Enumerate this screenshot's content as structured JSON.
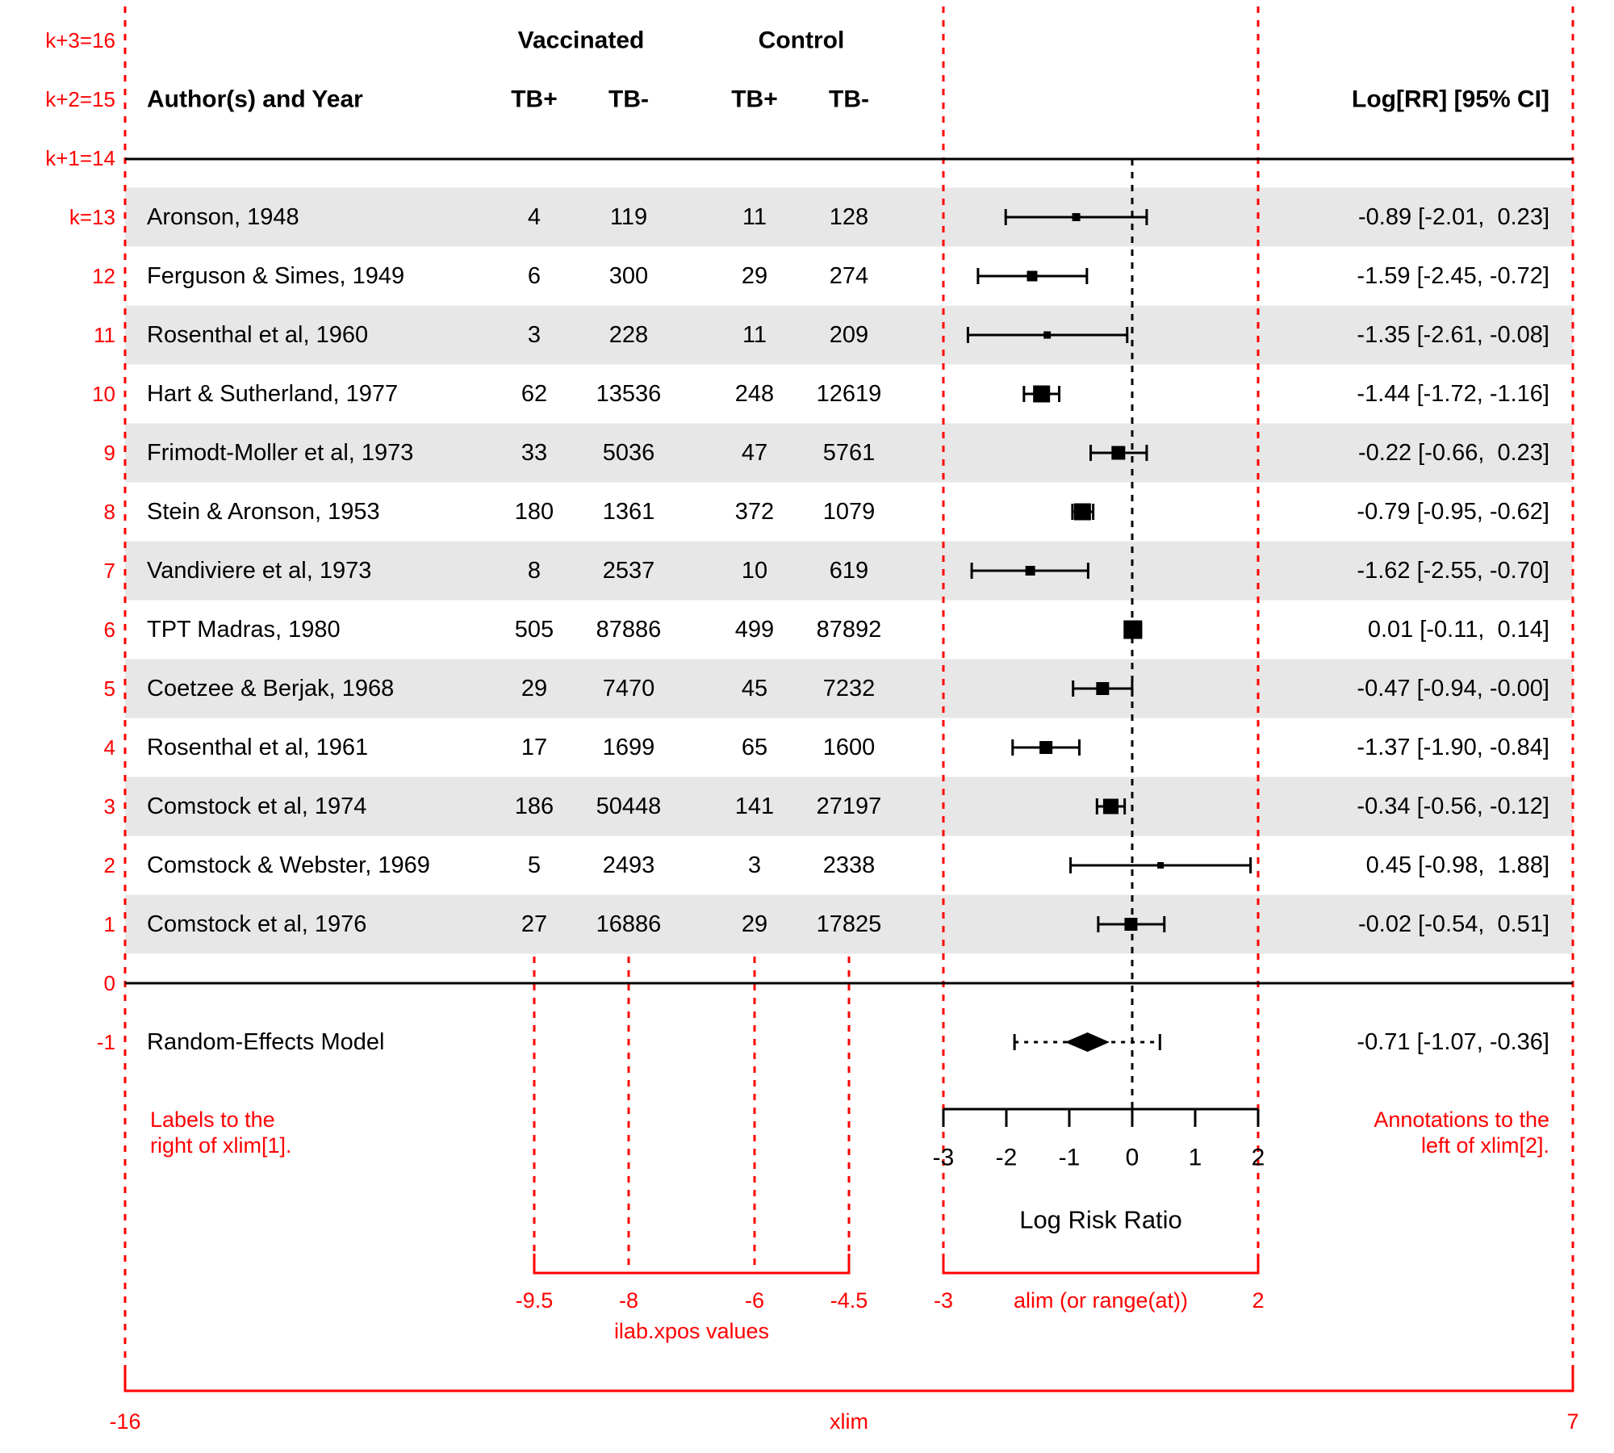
{
  "colors": {
    "red": "#FF0000",
    "band": "#E7E7E7",
    "ink": "#000000",
    "background": "#FFFFFF"
  },
  "header": {
    "author": "Author(s) and Year",
    "group_vaccinated": "Vaccinated",
    "group_control": "Control",
    "subcols": [
      "TB+",
      "TB-",
      "TB+",
      "TB-"
    ],
    "annotation": "Log[RR] [95% CI]"
  },
  "row_index_labels": [
    "k+3=16",
    "k+2=15",
    "k+1=14",
    "k=13",
    "12",
    "11",
    "10",
    "9",
    "8",
    "7",
    "6",
    "5",
    "4",
    "3",
    "2",
    "1",
    "0",
    "-1"
  ],
  "chart_data": {
    "type": "forest",
    "xlabel": "Log Risk Ratio",
    "axis_ticks": [
      -3,
      -2,
      -1,
      0,
      1,
      2
    ],
    "alim": [
      -3,
      2
    ],
    "xlim": [
      -16,
      7
    ],
    "ilab_xpos": [
      -9.5,
      -8,
      -6,
      -4.5
    ],
    "studies": [
      {
        "author": "Aronson, 1948",
        "tb_pos_v": 4,
        "tb_neg_v": 119,
        "tb_pos_c": 11,
        "tb_neg_c": 128,
        "estimate": -0.89,
        "ci_lb": -2.01,
        "ci_ub": 0.23,
        "annotation": "-0.89 [-2.01,  0.23]",
        "psize": 10,
        "shaded": true
      },
      {
        "author": "Ferguson & Simes, 1949",
        "tb_pos_v": 6,
        "tb_neg_v": 300,
        "tb_pos_c": 29,
        "tb_neg_c": 274,
        "estimate": -1.59,
        "ci_lb": -2.45,
        "ci_ub": -0.72,
        "annotation": "-1.59 [-2.45, -0.72]",
        "psize": 13,
        "shaded": false
      },
      {
        "author": "Rosenthal et al, 1960",
        "tb_pos_v": 3,
        "tb_neg_v": 228,
        "tb_pos_c": 11,
        "tb_neg_c": 209,
        "estimate": -1.35,
        "ci_lb": -2.61,
        "ci_ub": -0.08,
        "annotation": "-1.35 [-2.61, -0.08]",
        "psize": 9,
        "shaded": true
      },
      {
        "author": "Hart & Sutherland, 1977",
        "tb_pos_v": 62,
        "tb_neg_v": 13536,
        "tb_pos_c": 248,
        "tb_neg_c": 12619,
        "estimate": -1.44,
        "ci_lb": -1.72,
        "ci_ub": -1.16,
        "annotation": "-1.44 [-1.72, -1.16]",
        "psize": 21,
        "shaded": false
      },
      {
        "author": "Frimodt-Moller et al, 1973",
        "tb_pos_v": 33,
        "tb_neg_v": 5036,
        "tb_pos_c": 47,
        "tb_neg_c": 5761,
        "estimate": -0.22,
        "ci_lb": -0.66,
        "ci_ub": 0.23,
        "annotation": "-0.22 [-0.66,  0.23]",
        "psize": 17,
        "shaded": true
      },
      {
        "author": "Stein & Aronson, 1953",
        "tb_pos_v": 180,
        "tb_neg_v": 1361,
        "tb_pos_c": 372,
        "tb_neg_c": 1079,
        "estimate": -0.79,
        "ci_lb": -0.95,
        "ci_ub": -0.62,
        "annotation": "-0.79 [-0.95, -0.62]",
        "psize": 21,
        "shaded": false
      },
      {
        "author": "Vandiviere et al, 1973",
        "tb_pos_v": 8,
        "tb_neg_v": 2537,
        "tb_pos_c": 10,
        "tb_neg_c": 619,
        "estimate": -1.62,
        "ci_lb": -2.55,
        "ci_ub": -0.7,
        "annotation": "-1.62 [-2.55, -0.70]",
        "psize": 12,
        "shaded": true
      },
      {
        "author": "TPT Madras, 1980",
        "tb_pos_v": 505,
        "tb_neg_v": 87886,
        "tb_pos_c": 499,
        "tb_neg_c": 87892,
        "estimate": 0.01,
        "ci_lb": -0.11,
        "ci_ub": 0.14,
        "annotation": "0.01 [-0.11,  0.14]",
        "psize": 23,
        "shaded": false
      },
      {
        "author": "Coetzee & Berjak, 1968",
        "tb_pos_v": 29,
        "tb_neg_v": 7470,
        "tb_pos_c": 45,
        "tb_neg_c": 7232,
        "estimate": -0.47,
        "ci_lb": -0.94,
        "ci_ub": -0.001,
        "annotation": "-0.47 [-0.94, -0.00]",
        "psize": 16,
        "shaded": true
      },
      {
        "author": "Rosenthal et al, 1961",
        "tb_pos_v": 17,
        "tb_neg_v": 1699,
        "tb_pos_c": 65,
        "tb_neg_c": 1600,
        "estimate": -1.37,
        "ci_lb": -1.9,
        "ci_ub": -0.84,
        "annotation": "-1.37 [-1.90, -0.84]",
        "psize": 16,
        "shaded": false
      },
      {
        "author": "Comstock et al, 1974",
        "tb_pos_v": 186,
        "tb_neg_v": 50448,
        "tb_pos_c": 141,
        "tb_neg_c": 27197,
        "estimate": -0.34,
        "ci_lb": -0.56,
        "ci_ub": -0.12,
        "annotation": "-0.34 [-0.56, -0.12]",
        "psize": 19,
        "shaded": true
      },
      {
        "author": "Comstock & Webster, 1969",
        "tb_pos_v": 5,
        "tb_neg_v": 2493,
        "tb_pos_c": 3,
        "tb_neg_c": 2338,
        "estimate": 0.45,
        "ci_lb": -0.98,
        "ci_ub": 1.88,
        "annotation": "0.45 [-0.98,  1.88]",
        "psize": 8,
        "shaded": false
      },
      {
        "author": "Comstock et al, 1976",
        "tb_pos_v": 27,
        "tb_neg_v": 16886,
        "tb_pos_c": 29,
        "tb_neg_c": 17825,
        "estimate": -0.02,
        "ci_lb": -0.54,
        "ci_ub": 0.51,
        "annotation": "-0.02 [-0.54,  0.51]",
        "psize": 16,
        "shaded": true
      }
    ],
    "summary": {
      "label": "Random-Effects Model",
      "estimate": -0.71,
      "ci_lb": -1.07,
      "ci_ub": -0.36,
      "pred_lb": -1.87,
      "pred_ub": 0.44,
      "annotation": "-0.71 [-1.07, -0.36]"
    }
  },
  "red_annotations": {
    "left_note_line1": "Labels to the",
    "left_note_line2": "right of xlim[1].",
    "right_note_line1": "Annotations to the",
    "right_note_line2": "left of xlim[2].",
    "ilab_tick_labels": [
      "-9.5",
      "-8",
      "-6",
      "-4.5"
    ],
    "ilab_caption": "ilab.xpos values",
    "alim_tick_labels": [
      "-3",
      "2"
    ],
    "alim_caption": "alim (or range(at))",
    "xlim_tick_labels": [
      "-16",
      "7"
    ],
    "xlim_caption": "xlim"
  }
}
